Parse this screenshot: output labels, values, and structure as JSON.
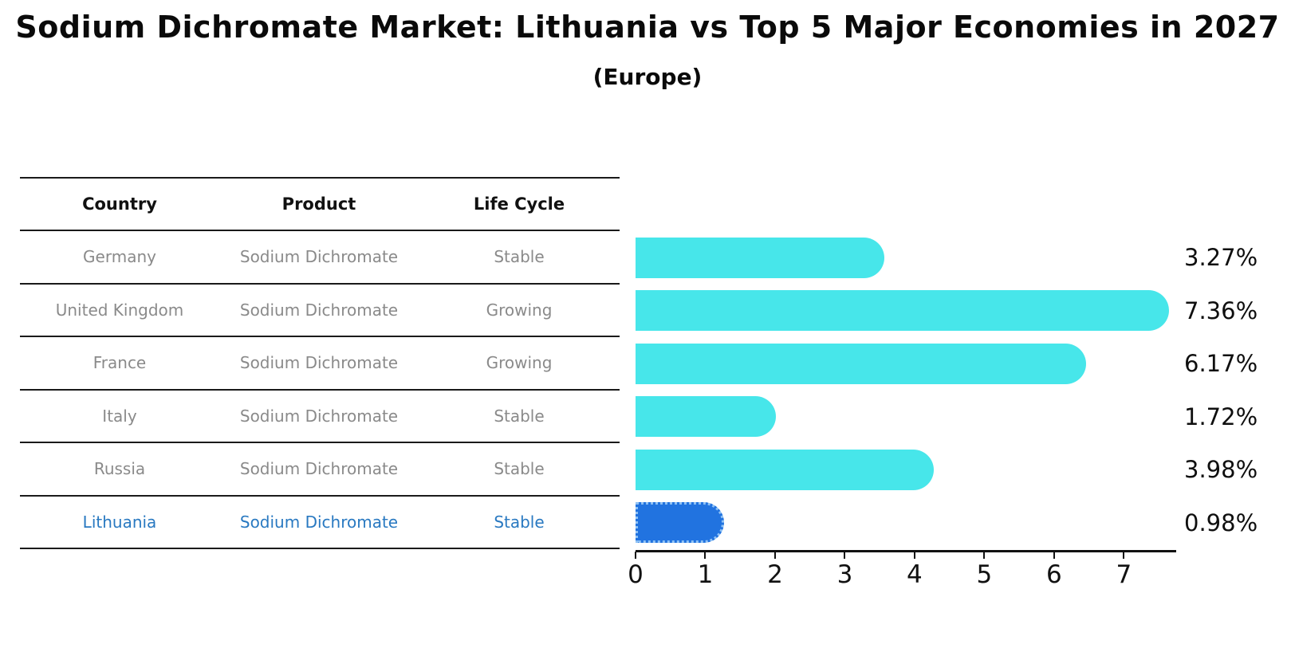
{
  "title": "Sodium Dichromate Market: Lithuania vs Top 5 Major Economies in 2027",
  "subtitle": "(Europe)",
  "table": {
    "headers": [
      "Country",
      "Product",
      "Life Cycle"
    ],
    "rows": [
      {
        "country": "Germany",
        "product": "Sodium Dichromate",
        "life_cycle": "Stable",
        "highlight": false
      },
      {
        "country": "United Kingdom",
        "product": "Sodium Dichromate",
        "life_cycle": "Growing",
        "highlight": false
      },
      {
        "country": "France",
        "product": "Sodium Dichromate",
        "life_cycle": "Growing",
        "highlight": false
      },
      {
        "country": "Italy",
        "product": "Sodium Dichromate",
        "life_cycle": "Stable",
        "highlight": false
      },
      {
        "country": "Russia",
        "product": "Sodium Dichromate",
        "life_cycle": "Stable",
        "highlight": false
      },
      {
        "country": "Lithuania",
        "product": "Sodium Dichromate",
        "life_cycle": "Stable",
        "highlight": true
      }
    ]
  },
  "chart_data": {
    "type": "bar",
    "orientation": "horizontal",
    "categories": [
      "Germany",
      "United Kingdom",
      "France",
      "Italy",
      "Russia",
      "Lithuania"
    ],
    "values": [
      3.27,
      7.36,
      6.17,
      1.72,
      3.98,
      0.98
    ],
    "value_labels": [
      "3.27%",
      "7.36%",
      "6.17%",
      "1.72%",
      "3.98%",
      "0.98%"
    ],
    "xlim": [
      0,
      7.75
    ],
    "xticks": [
      "0",
      "1",
      "2",
      "3",
      "4",
      "5",
      "6",
      "7"
    ],
    "grid": false,
    "legend": false,
    "highlight_index": 5,
    "colors": {
      "bar": "#47E6EA",
      "highlight_bar": "#2173E0",
      "highlight_bar_dots": "#8ec1f5",
      "highlight_text": "#2979C1",
      "row_text": "#8a8a8a",
      "axis": "#111111"
    }
  }
}
